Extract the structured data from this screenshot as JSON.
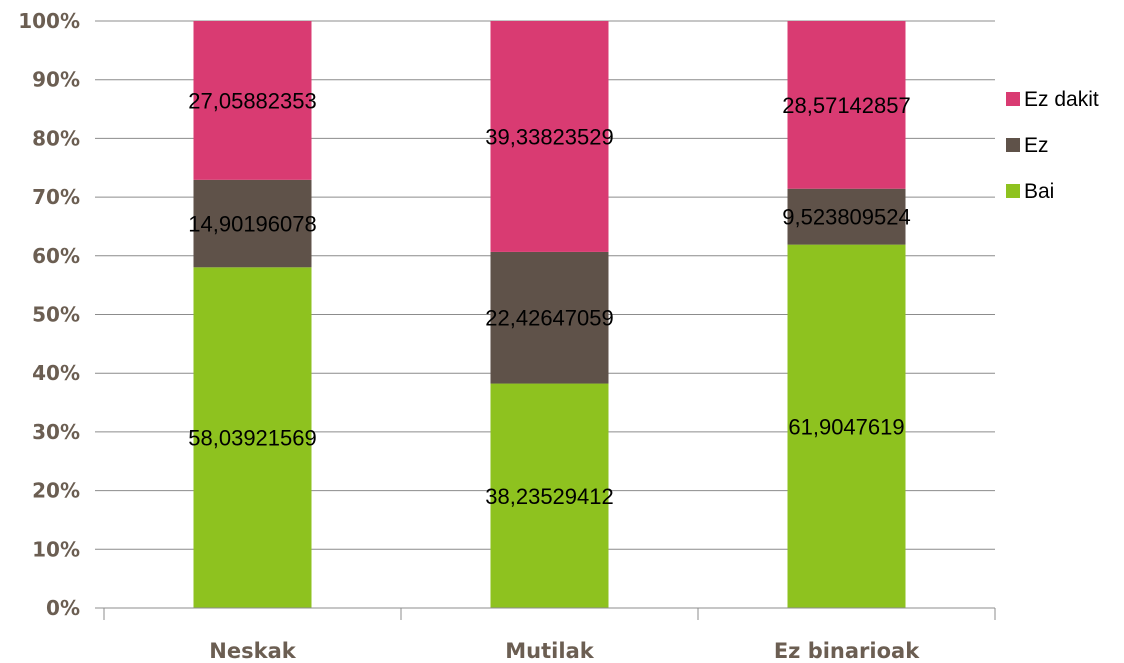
{
  "chart_data": {
    "type": "bar",
    "stacked": true,
    "title": "",
    "xlabel": "",
    "ylabel": "",
    "ylim": [
      0,
      100
    ],
    "y_tick_labels": [
      "0%",
      "10%",
      "20%",
      "30%",
      "40%",
      "50%",
      "60%",
      "70%",
      "80%",
      "90%",
      "100%"
    ],
    "categories": [
      "Neskak",
      "Mutilak",
      "Ez binarioak"
    ],
    "series": [
      {
        "name": "Bai",
        "color": "#8ec21f",
        "values": [
          58.03921569,
          38.23529412,
          61.9047619
        ],
        "labels": [
          "58,03921569",
          "38,23529412",
          "61,9047619"
        ]
      },
      {
        "name": "Ez",
        "color": "#5f5249",
        "values": [
          14.90196078,
          22.42647059,
          9.523809524
        ],
        "labels": [
          "14,90196078",
          "22,42647059",
          "9,523809524"
        ]
      },
      {
        "name": "Ez dakit",
        "color": "#d93b72",
        "values": [
          27.05882353,
          39.33823529,
          28.57142857
        ],
        "labels": [
          "27,05882353",
          "39,33823529",
          "28,57142857"
        ]
      }
    ],
    "legend_order": [
      "Ez dakit",
      "Ez",
      "Bai"
    ],
    "legend_position": "right",
    "grid": true,
    "grid_color": "#8c8c8c",
    "axis_text_color": "#6b5e52"
  }
}
